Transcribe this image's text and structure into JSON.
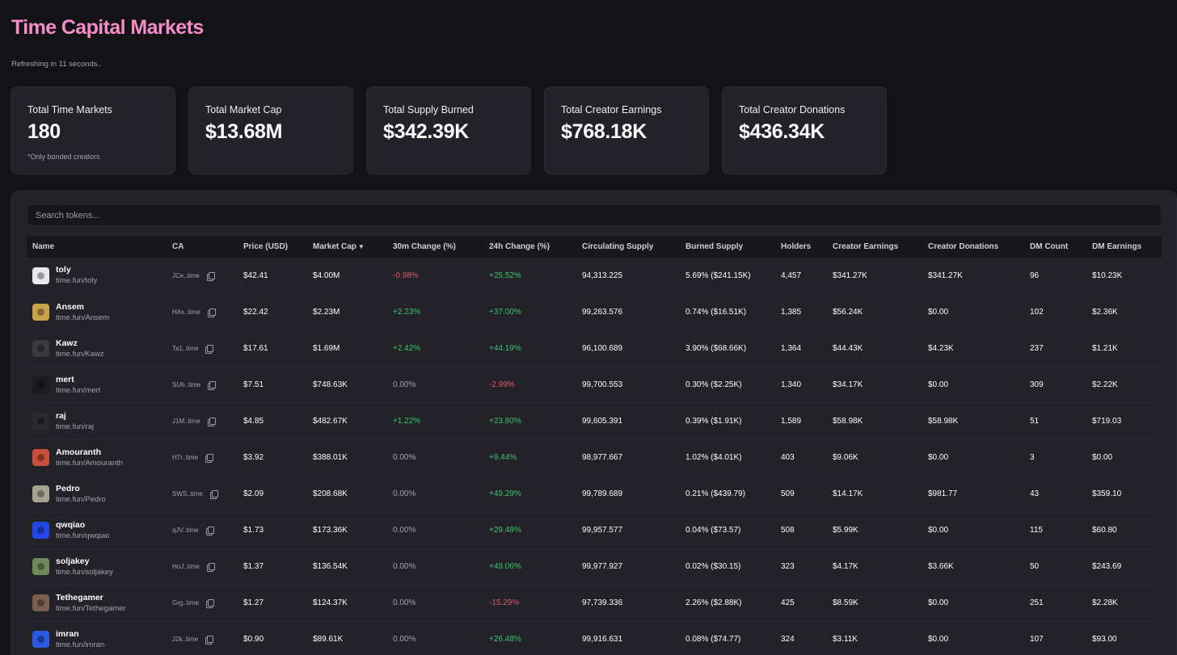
{
  "header": {
    "title": "Time Capital Markets",
    "refresh_text": "Refreshing in 11 seconds.."
  },
  "stats": [
    {
      "label": "Total Time Markets",
      "value": "180",
      "note": "*Only bonded creators"
    },
    {
      "label": "Total Market Cap",
      "value": "$13.68M",
      "note": ""
    },
    {
      "label": "Total Supply Burned",
      "value": "$342.39K",
      "note": ""
    },
    {
      "label": "Total Creator Earnings",
      "value": "$768.18K",
      "note": ""
    },
    {
      "label": "Total Creator Donations",
      "value": "$436.34K",
      "note": ""
    }
  ],
  "search": {
    "placeholder": "Search tokens..."
  },
  "table": {
    "sort_indicator": "▼",
    "columns": [
      "Name",
      "CA",
      "Price (USD)",
      "Market Cap",
      "30m Change (%)",
      "24h Change (%)",
      "Circulating Supply",
      "Burned Supply",
      "Holders",
      "Creator Earnings",
      "Creator Donations",
      "DM Count",
      "DM Earnings"
    ],
    "rows": [
      {
        "name": "toly",
        "url": "time.fun/toly",
        "ca": "JCe..time",
        "price": "$42.41",
        "mcap": "$4.00M",
        "ch30": "-0.98%",
        "ch30_dir": "neg",
        "ch24": "+25.52%",
        "ch24_dir": "pos",
        "circ": "94,313.225",
        "burned": "5.69% ($241.15K)",
        "holders": "4,457",
        "earnings": "$341.27K",
        "donations": "$341.27K",
        "dm_count": "96",
        "dm_earnings": "$10.23K",
        "avatar_color": "#e8e8ea"
      },
      {
        "name": "Ansem",
        "url": "time.fun/Ansem",
        "ca": "HAs..time",
        "price": "$22.42",
        "mcap": "$2.23M",
        "ch30": "+2.23%",
        "ch30_dir": "pos",
        "ch24": "+37.00%",
        "ch24_dir": "pos",
        "circ": "99,263.576",
        "burned": "0.74% ($16.51K)",
        "holders": "1,385",
        "earnings": "$56.24K",
        "donations": "$0.00",
        "dm_count": "102",
        "dm_earnings": "$2.36K",
        "avatar_color": "#c9a24a"
      },
      {
        "name": "Kawz",
        "url": "time.fun/Kawz",
        "ca": "Ta1..time",
        "price": "$17.61",
        "mcap": "$1.69M",
        "ch30": "+2.42%",
        "ch30_dir": "pos",
        "ch24": "+44.19%",
        "ch24_dir": "pos",
        "circ": "96,100.689",
        "burned": "3.90% ($68.66K)",
        "holders": "1,364",
        "earnings": "$44.43K",
        "donations": "$4.23K",
        "dm_count": "237",
        "dm_earnings": "$1.21K",
        "avatar_color": "#3a3a3e"
      },
      {
        "name": "mert",
        "url": "time.fun/mert",
        "ca": "SUh..time",
        "price": "$7.51",
        "mcap": "$748.63K",
        "ch30": "0.00%",
        "ch30_dir": "zero",
        "ch24": "-2.99%",
        "ch24_dir": "neg",
        "circ": "99,700.553",
        "burned": "0.30% ($2.25K)",
        "holders": "1,340",
        "earnings": "$34.17K",
        "donations": "$0.00",
        "dm_count": "309",
        "dm_earnings": "$2.22K",
        "avatar_color": "#1c1c1e"
      },
      {
        "name": "raj",
        "url": "time.fun/raj",
        "ca": "J1M..time",
        "price": "$4.85",
        "mcap": "$482.67K",
        "ch30": "+1.22%",
        "ch30_dir": "pos",
        "ch24": "+23.80%",
        "ch24_dir": "pos",
        "circ": "99,605.391",
        "burned": "0.39% ($1.91K)",
        "holders": "1,589",
        "earnings": "$58.98K",
        "donations": "$58.98K",
        "dm_count": "51",
        "dm_earnings": "$719.03",
        "avatar_color": "#2a2a2c"
      },
      {
        "name": "Amouranth",
        "url": "time.fun/Amouranth",
        "ca": "H7r..time",
        "price": "$3.92",
        "mcap": "$388.01K",
        "ch30": "0.00%",
        "ch30_dir": "zero",
        "ch24": "+9.44%",
        "ch24_dir": "pos",
        "circ": "98,977.667",
        "burned": "1.02% ($4.01K)",
        "holders": "403",
        "earnings": "$9.06K",
        "donations": "$0.00",
        "dm_count": "3",
        "dm_earnings": "$0.00",
        "avatar_color": "#c9503c"
      },
      {
        "name": "Pedro",
        "url": "time.fun/Pedro",
        "ca": "SWS..time",
        "price": "$2.09",
        "mcap": "$208.68K",
        "ch30": "0.00%",
        "ch30_dir": "zero",
        "ch24": "+49.29%",
        "ch24_dir": "pos",
        "circ": "99,789.689",
        "burned": "0.21% ($439.79)",
        "holders": "509",
        "earnings": "$14.17K",
        "donations": "$981.77",
        "dm_count": "43",
        "dm_earnings": "$359.10",
        "avatar_color": "#a8a390"
      },
      {
        "name": "qwqiao",
        "url": "time.fun/qwqiao",
        "ca": "qJV..time",
        "price": "$1.73",
        "mcap": "$173.36K",
        "ch30": "0.00%",
        "ch30_dir": "zero",
        "ch24": "+29.48%",
        "ch24_dir": "pos",
        "circ": "99,957.577",
        "burned": "0.04% ($73.57)",
        "holders": "508",
        "earnings": "$5.99K",
        "donations": "$0.00",
        "dm_count": "115",
        "dm_earnings": "$60.80",
        "avatar_color": "#2448e6"
      },
      {
        "name": "soljakey",
        "url": "time.fun/soljakey",
        "ca": "HoJ..time",
        "price": "$1.37",
        "mcap": "$136.54K",
        "ch30": "0.00%",
        "ch30_dir": "zero",
        "ch24": "+49.06%",
        "ch24_dir": "pos",
        "circ": "99,977.927",
        "burned": "0.02% ($30.15)",
        "holders": "323",
        "earnings": "$4.17K",
        "donations": "$3.66K",
        "dm_count": "50",
        "dm_earnings": "$243.69",
        "avatar_color": "#6e8a5c"
      },
      {
        "name": "Tethegamer",
        "url": "time.fun/Tethegamer",
        "ca": "Grg..time",
        "price": "$1.27",
        "mcap": "$124.37K",
        "ch30": "0.00%",
        "ch30_dir": "zero",
        "ch24": "-15.29%",
        "ch24_dir": "neg",
        "circ": "97,739.336",
        "burned": "2.26% ($2.88K)",
        "holders": "425",
        "earnings": "$8.59K",
        "donations": "$0.00",
        "dm_count": "251",
        "dm_earnings": "$2.28K",
        "avatar_color": "#7a5f4e"
      },
      {
        "name": "imran",
        "url": "time.fun/imran",
        "ca": "J2k..time",
        "price": "$0.90",
        "mcap": "$89.61K",
        "ch30": "0.00%",
        "ch30_dir": "zero",
        "ch24": "+26.48%",
        "ch24_dir": "pos",
        "circ": "99,916.631",
        "burned": "0.08% ($74.77)",
        "holders": "324",
        "earnings": "$3.11K",
        "donations": "$0.00",
        "dm_count": "107",
        "dm_earnings": "$93.00",
        "avatar_color": "#2a5ae0"
      }
    ]
  }
}
